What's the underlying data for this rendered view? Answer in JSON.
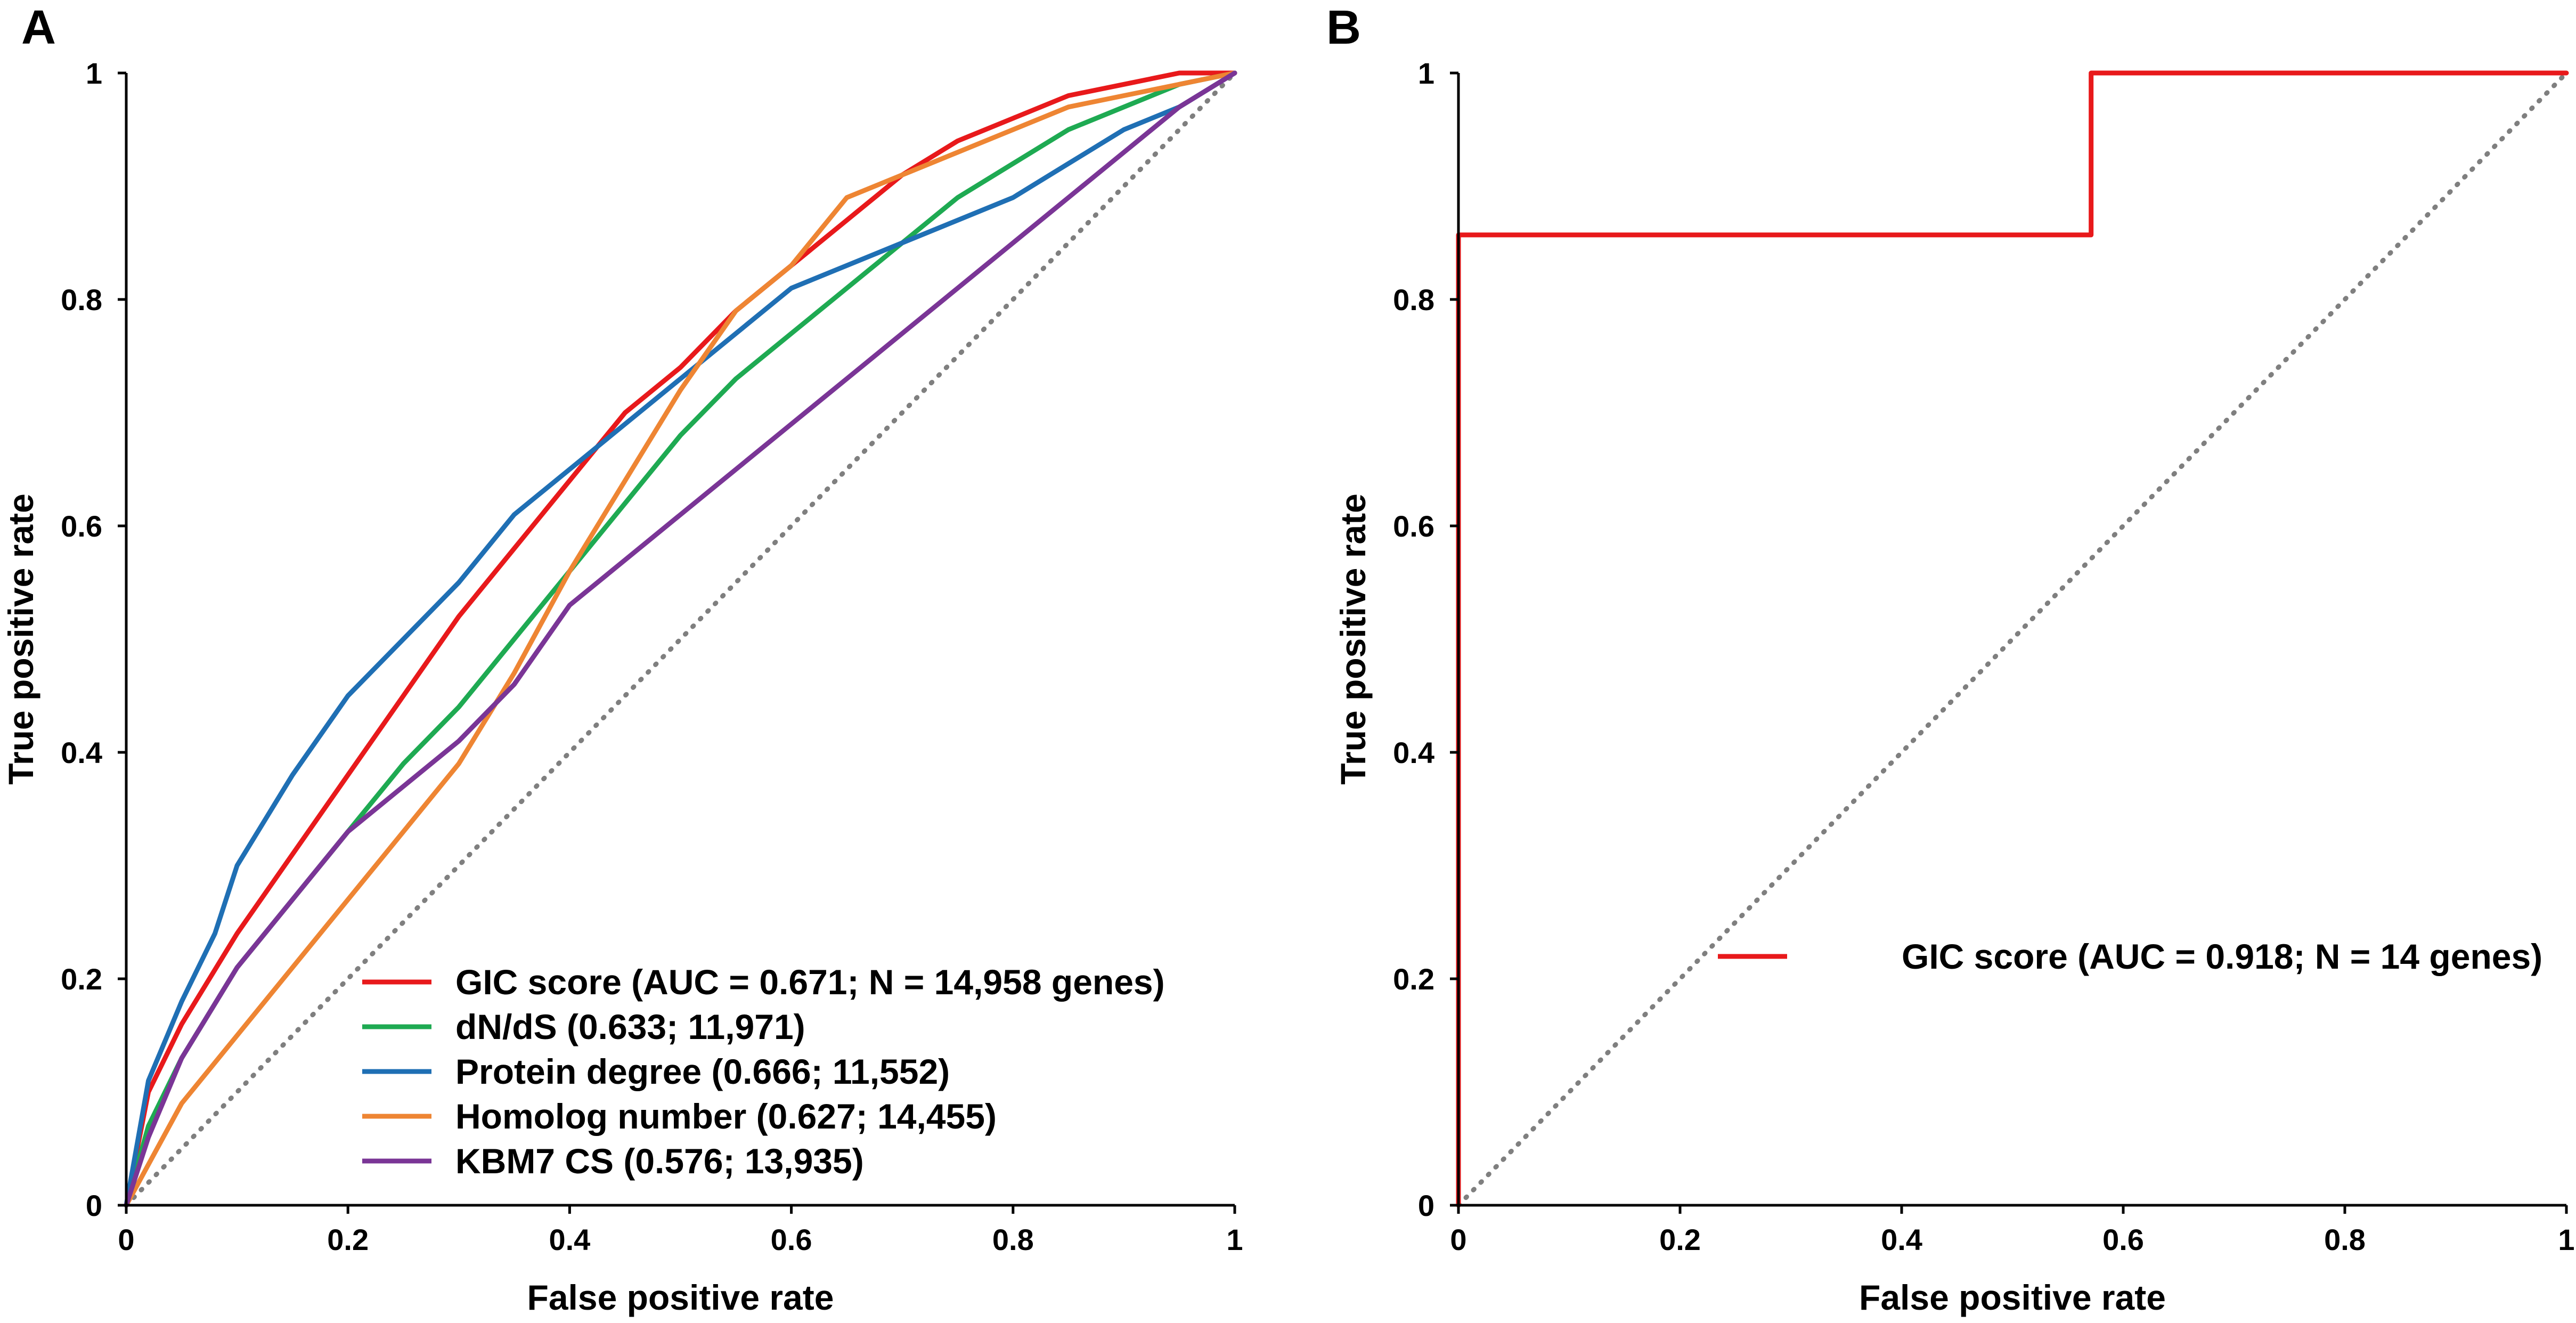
{
  "chart_data": [
    {
      "panel_label": "A",
      "type": "line",
      "xlabel": "False positive rate",
      "ylabel": "True positive rate",
      "xlim": [
        0,
        1
      ],
      "ylim": [
        0,
        1
      ],
      "xticks": [
        "0",
        "0.2",
        "0.4",
        "0.6",
        "0.8",
        "1"
      ],
      "yticks": [
        "0",
        "0.2",
        "0.4",
        "0.6",
        "0.8",
        "1"
      ],
      "diagonal": true,
      "legend_position": "bottom-right",
      "series": [
        {
          "name": "GIC score (AUC = 0.671; N = 14,958 genes)",
          "color": "#e8191b",
          "x": [
            0,
            0.02,
            0.05,
            0.1,
            0.15,
            0.2,
            0.25,
            0.3,
            0.35,
            0.4,
            0.45,
            0.5,
            0.55,
            0.6,
            0.65,
            0.7,
            0.75,
            0.8,
            0.85,
            0.9,
            0.95,
            1
          ],
          "y": [
            0,
            0.1,
            0.16,
            0.24,
            0.31,
            0.38,
            0.45,
            0.52,
            0.58,
            0.64,
            0.7,
            0.74,
            0.79,
            0.83,
            0.87,
            0.91,
            0.94,
            0.96,
            0.98,
            0.99,
            1.0,
            1
          ]
        },
        {
          "name": "dN/dS (0.633; 11,971)",
          "color": "#1eaa52",
          "x": [
            0,
            0.02,
            0.05,
            0.1,
            0.15,
            0.2,
            0.25,
            0.3,
            0.35,
            0.4,
            0.45,
            0.5,
            0.55,
            0.6,
            0.65,
            0.7,
            0.75,
            0.8,
            0.85,
            0.9,
            0.95,
            1
          ],
          "y": [
            0,
            0.07,
            0.13,
            0.21,
            0.27,
            0.33,
            0.39,
            0.44,
            0.5,
            0.56,
            0.62,
            0.68,
            0.73,
            0.77,
            0.81,
            0.85,
            0.89,
            0.92,
            0.95,
            0.97,
            0.99,
            1
          ]
        },
        {
          "name": "Protein degree (0.666; 11,552)",
          "color": "#1f6fb4",
          "x": [
            0,
            0.02,
            0.05,
            0.08,
            0.1,
            0.15,
            0.2,
            0.25,
            0.3,
            0.35,
            0.4,
            0.45,
            0.5,
            0.55,
            0.6,
            0.65,
            0.7,
            0.75,
            0.8,
            0.85,
            0.9,
            0.95,
            1
          ],
          "y": [
            0,
            0.11,
            0.18,
            0.24,
            0.3,
            0.38,
            0.45,
            0.5,
            0.55,
            0.61,
            0.65,
            0.69,
            0.73,
            0.77,
            0.81,
            0.83,
            0.85,
            0.87,
            0.89,
            0.92,
            0.95,
            0.97,
            1
          ]
        },
        {
          "name": "Homolog number (0.627; 14,455)",
          "color": "#ee8533",
          "x": [
            0,
            0.05,
            0.1,
            0.15,
            0.2,
            0.25,
            0.3,
            0.35,
            0.4,
            0.45,
            0.5,
            0.55,
            0.6,
            0.65,
            0.7,
            0.75,
            0.8,
            0.85,
            0.9,
            0.95,
            1
          ],
          "y": [
            0,
            0.09,
            0.15,
            0.21,
            0.27,
            0.33,
            0.39,
            0.47,
            0.56,
            0.64,
            0.72,
            0.79,
            0.83,
            0.89,
            0.91,
            0.93,
            0.95,
            0.97,
            0.98,
            0.99,
            1
          ]
        },
        {
          "name": "KBM7 CS (0.576; 13,935)",
          "color": "#7a3596",
          "x": [
            0,
            0.02,
            0.05,
            0.1,
            0.15,
            0.2,
            0.25,
            0.3,
            0.35,
            0.4,
            0.45,
            0.5,
            0.55,
            0.6,
            0.65,
            0.7,
            0.75,
            0.8,
            0.85,
            0.9,
            0.95,
            1
          ],
          "y": [
            0,
            0.06,
            0.13,
            0.21,
            0.27,
            0.33,
            0.37,
            0.41,
            0.46,
            0.53,
            0.57,
            0.61,
            0.65,
            0.69,
            0.73,
            0.77,
            0.81,
            0.85,
            0.89,
            0.93,
            0.97,
            1
          ]
        }
      ]
    },
    {
      "panel_label": "B",
      "type": "line",
      "xlabel": "False positive rate",
      "ylabel": "True positive rate",
      "xlim": [
        0,
        1
      ],
      "ylim": [
        0,
        1
      ],
      "xticks": [
        "0",
        "0.2",
        "0.4",
        "0.6",
        "0.8",
        "1"
      ],
      "yticks": [
        "0",
        "0.2",
        "0.4",
        "0.6",
        "0.8",
        "1"
      ],
      "diagonal": true,
      "legend_position": "lower-right",
      "series": [
        {
          "name": "GIC score (AUC = 0.918; N = 14 genes)",
          "color": "#e8191b",
          "x": [
            0,
            0,
            0.571,
            0.571,
            1
          ],
          "y": [
            0,
            0.857,
            0.857,
            1,
            1
          ]
        }
      ]
    }
  ]
}
